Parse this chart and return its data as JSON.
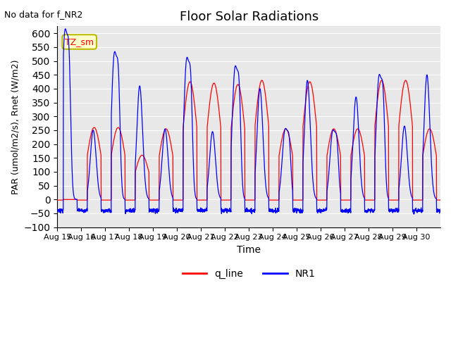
{
  "title": "Floor Solar Radiations",
  "subtitle": "No data for f_NR2",
  "xlabel": "Time",
  "ylabel": "PAR (umol/m2/s), Rnet (W/m2)",
  "ylim": [
    -100,
    625
  ],
  "yticks": [
    -100,
    -50,
    0,
    50,
    100,
    150,
    200,
    250,
    300,
    350,
    400,
    450,
    500,
    550,
    600
  ],
  "xtick_positions": [
    0,
    1,
    2,
    3,
    4,
    5,
    6,
    7,
    8,
    9,
    10,
    11,
    12,
    13,
    14,
    15
  ],
  "xtick_labels": [
    "Aug 15",
    "Aug 16",
    "Aug 17",
    "Aug 18",
    "Aug 19",
    "Aug 20",
    "Aug 21",
    "Aug 22",
    "Aug 23",
    "Aug 24",
    "Aug 25",
    "Aug 26",
    "Aug 27",
    "Aug 28",
    "Aug 29",
    "Aug 30"
  ],
  "legend_labels": [
    "q_line",
    "NR1"
  ],
  "legend_colors": [
    "red",
    "blue"
  ],
  "annotation_text": "TZ_sm",
  "annotation_color": "red",
  "annotation_bg": "#ffffcc",
  "bg_color": "#e8e8e8",
  "line_color_red": "red",
  "line_color_blue": "blue",
  "n_days": 16,
  "points_per_day": 144
}
